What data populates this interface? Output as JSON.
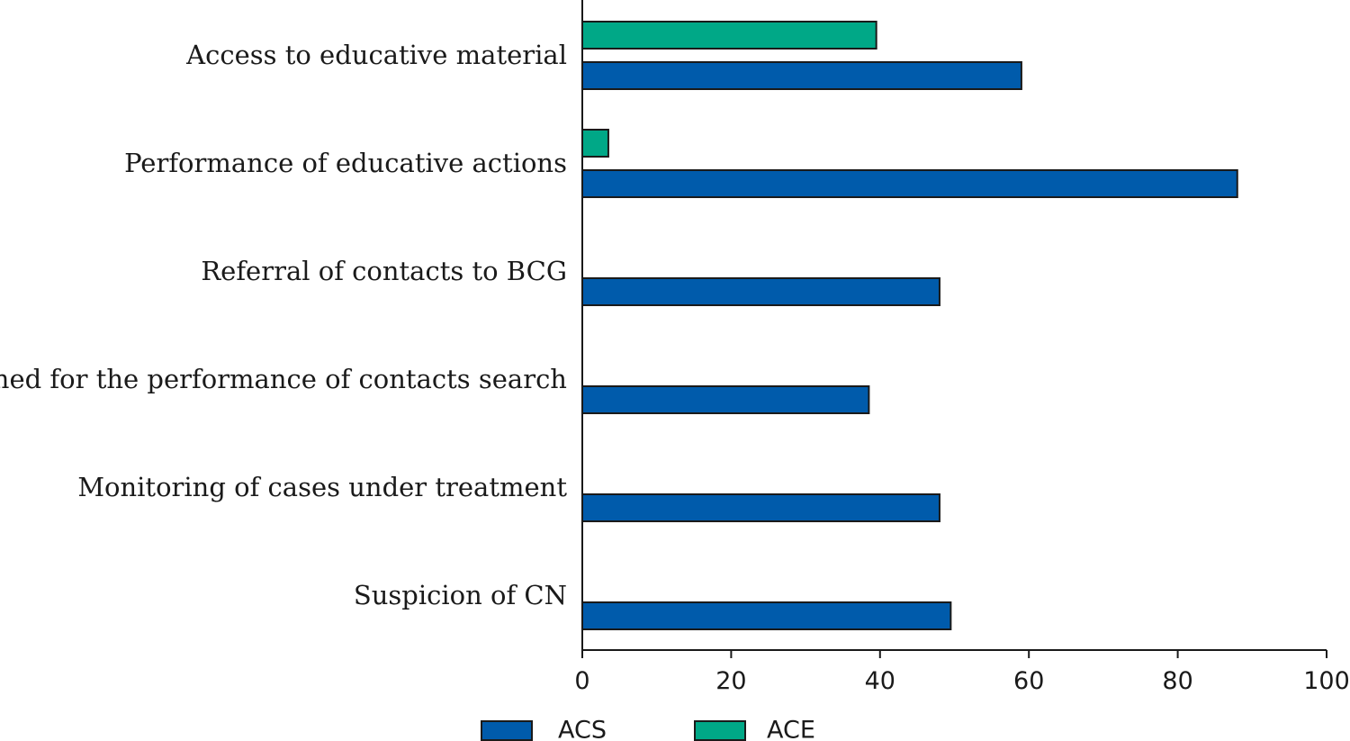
{
  "chart_data": {
    "type": "bar",
    "orientation": "horizontal",
    "categories": [
      "Access to educative material",
      "Performance of educative actions",
      "Referral of contacts to BCG",
      "Trained for the performance of contacts search",
      "Monitoring of cases under treatment",
      "Suspicion of CN"
    ],
    "series": [
      {
        "name": "ACS",
        "color": "#005bab",
        "values": [
          59,
          88,
          48,
          38.5,
          48,
          49.5
        ]
      },
      {
        "name": "ACE",
        "color": "#00a887",
        "values": [
          39.5,
          3.5,
          0,
          0,
          0,
          0
        ]
      }
    ],
    "xlim": [
      0,
      100
    ],
    "xticks": [
      "0",
      "20",
      "40",
      "60",
      "80",
      "100"
    ],
    "xlabel": "",
    "ylabel": "",
    "title": "",
    "grid": false,
    "legend_position": "bottom"
  }
}
